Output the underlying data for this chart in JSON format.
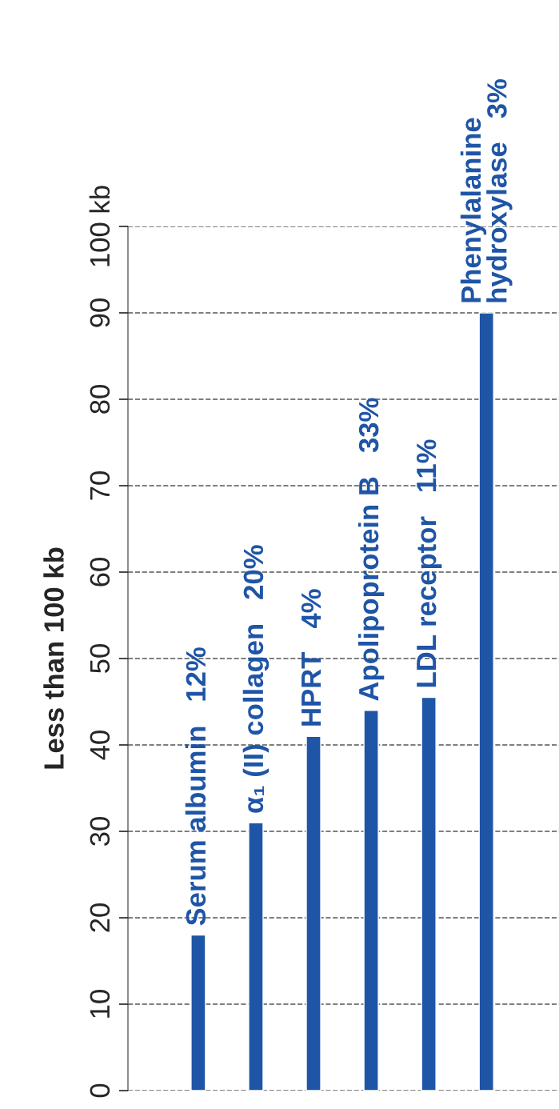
{
  "chart_data": {
    "type": "bar",
    "ylabel": "Less than 100 kb",
    "categories": [
      "Serum albumin   12%",
      "α₁ (II) collagen   20%",
      "HPRT   4%",
      "Apolipoprotein B   33%",
      "LDL receptor   11%",
      "Phenylalanine\nhydroxylase   3%"
    ],
    "values": [
      18,
      31,
      41,
      44,
      45.5,
      90
    ],
    "color": "#1f55a6",
    "ylim": [
      0,
      100
    ],
    "yticks": [
      0,
      10,
      20,
      30,
      40,
      50,
      60,
      70,
      80,
      90,
      {
        "value": 100,
        "label": "100 kb"
      }
    ],
    "grid": "y",
    "line_style": "dashed"
  }
}
